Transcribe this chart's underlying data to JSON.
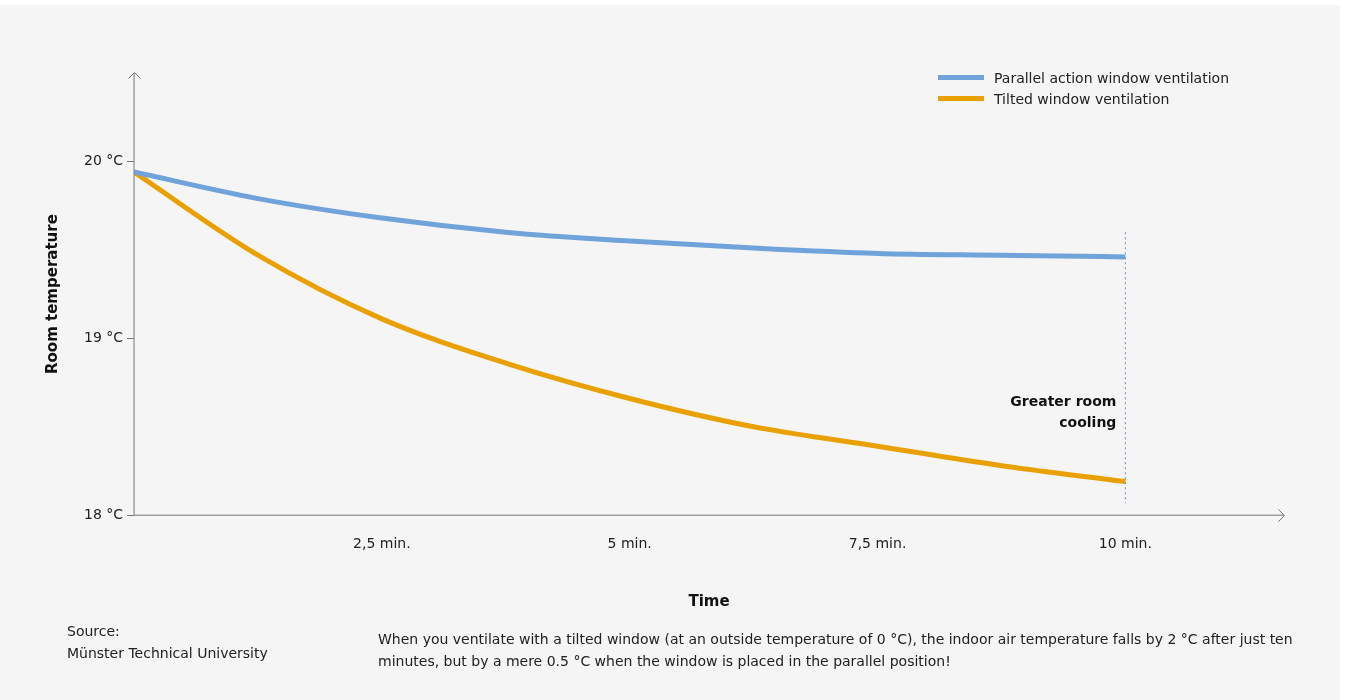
{
  "chart_data": {
    "type": "line",
    "xlabel": "Time",
    "ylabel": "Room temperature",
    "x": [
      0,
      1.25,
      2.5,
      3.75,
      5,
      6.25,
      7.5,
      8.75,
      10
    ],
    "series": [
      {
        "name": "Parallel action window ventilation",
        "color": "#6fa3da",
        "values": [
          19.94,
          19.79,
          19.68,
          19.6,
          19.55,
          19.51,
          19.48,
          19.47,
          19.46
        ]
      },
      {
        "name": "Tilted window ventilation",
        "color": "#e8a100",
        "values": [
          19.94,
          19.47,
          19.11,
          18.86,
          18.66,
          18.5,
          18.39,
          18.28,
          18.19
        ]
      }
    ],
    "xlim": [
      0,
      11.6
    ],
    "ylim": [
      18,
      20.5
    ],
    "xticks": [
      {
        "value": 0,
        "label": null
      },
      {
        "value": 2.5,
        "label": "2,5 min."
      },
      {
        "value": 5,
        "label": "5 min."
      },
      {
        "value": 7.5,
        "label": "7,5 min."
      },
      {
        "value": 10,
        "label": "10 min."
      }
    ],
    "yticks": [
      {
        "value": 18,
        "label": "18 °C"
      },
      {
        "value": 19,
        "label": "19 °C"
      },
      {
        "value": 20,
        "label": "20 °C"
      }
    ],
    "ref_lines": [
      {
        "axis": "x",
        "value": 10,
        "color": "#6f8fbf",
        "line_style": "dotted"
      }
    ],
    "annotations": [
      {
        "text": "Greater room cooling",
        "x": 10,
        "y": 18.5
      },
      "Source:\nMünster Technical University",
      "When you ventilate with a tilted window (at an outside temperature of 0 °C), the indoor air temperature falls by 2 °C after just ten minutes, but by a mere 0.5 °C when the window is placed in the parallel position!"
    ],
    "legend": "top right",
    "grid": false,
    "marker": "none",
    "line_style": "solid"
  }
}
